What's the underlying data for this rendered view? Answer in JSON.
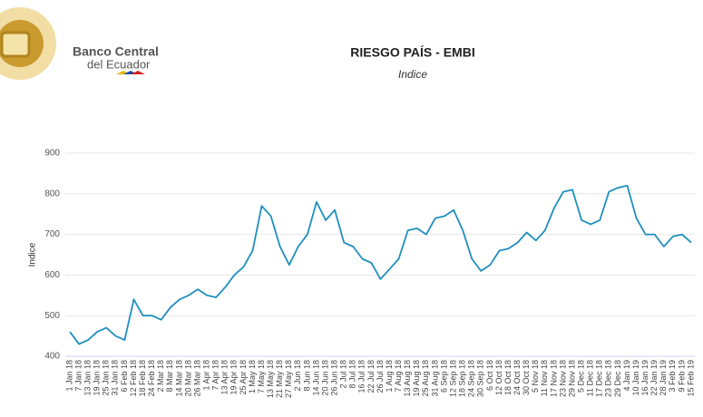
{
  "header": {
    "bank_name": [
      "Banco Central",
      "del Ecuador"
    ]
  },
  "chart_data": {
    "type": "line",
    "title": "RIESGO PAÍS - EMBI",
    "subtitle": "Indice",
    "y_label": "Indice",
    "categories": [
      "1 Jan 18",
      "7 Jan 18",
      "13 Jan 18",
      "19 Jan 18",
      "25 Jan 18",
      "31 Jan 18",
      "6 Feb 18",
      "12 Feb 18",
      "18 Feb 18",
      "24 Feb 18",
      "2 Mar 18",
      "8 Mar 18",
      "14 Mar 18",
      "20 Mar 18",
      "26 Mar 18",
      "1 Apr 18",
      "7 Apr 18",
      "13 Apr 18",
      "19 Apr 18",
      "25 Apr 18",
      "1 May 18",
      "7 May 18",
      "13 May 18",
      "21 May 18",
      "27 May 18",
      "2 Jun 18",
      "8 Jun 18",
      "14 Jun 18",
      "20 Jun 18",
      "26 Jun 18",
      "2 Jul 18",
      "8 Jul 18",
      "16 Jul 18",
      "22 Jul 18",
      "26 Jul 18",
      "1 Aug 18",
      "7 Aug 18",
      "13 Aug 18",
      "19 Aug 18",
      "25 Aug 18",
      "31 Aug 18",
      "6 Sep 18",
      "12 Sep 18",
      "18 Sep 18",
      "24 Sep 18",
      "30 Sep 18",
      "6 Oct 18",
      "12 Oct 18",
      "18 Oct 18",
      "24 Oct 18",
      "30 Oct 18",
      "5 Nov 18",
      "11 Nov 18",
      "17 Nov 18",
      "23 Nov 18",
      "29 Nov 18",
      "5 Dec 18",
      "11 Dec 18",
      "17 Dec 18",
      "23 Dec 18",
      "29 Dec 18",
      "4 Jan 19",
      "10 Jan 19",
      "16 Jan 19",
      "22 Jan 19",
      "28 Jan 19",
      "3 Feb 19",
      "9 Feb 19",
      "15 Feb 19"
    ],
    "values": [
      460,
      430,
      440,
      460,
      470,
      450,
      440,
      540,
      500,
      500,
      490,
      520,
      540,
      550,
      565,
      550,
      545,
      570,
      600,
      620,
      660,
      770,
      745,
      670,
      625,
      670,
      700,
      780,
      735,
      760,
      680,
      670,
      640,
      630,
      590,
      615,
      640,
      710,
      715,
      700,
      740,
      745,
      760,
      710,
      640,
      610,
      625,
      660,
      665,
      680,
      705,
      685,
      710,
      765,
      805,
      810,
      735,
      725,
      735,
      805,
      815,
      820,
      740,
      700,
      700,
      670,
      695,
      700,
      680
    ],
    "color": "#1f8fbf",
    "ylim": [
      400,
      900
    ],
    "yticks": [
      400,
      500,
      600,
      700,
      800,
      900
    ],
    "grid": true
  }
}
